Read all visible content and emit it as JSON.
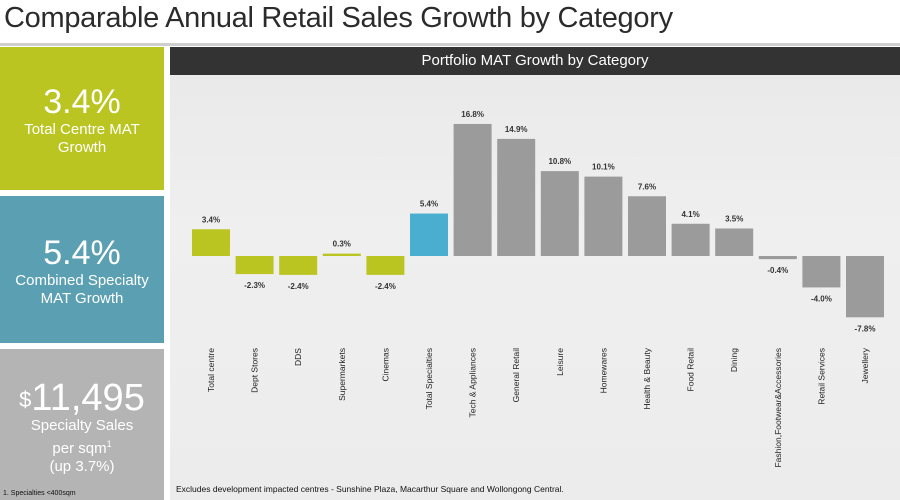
{
  "header": {
    "title": "Comparable Annual Retail Sales Growth by Category"
  },
  "kpis": [
    {
      "value": "3.4%",
      "label_line1": "Total Centre MAT",
      "label_line2": "Growth",
      "color": "#bac521"
    },
    {
      "value": "5.4%",
      "label_line1": "Combined Specialty",
      "label_line2": "MAT Growth",
      "color": "#5ba0b2"
    },
    {
      "currency": "$",
      "value": "11,495",
      "label_line1": "Specialty Sales",
      "label_line2": "per sqm",
      "footnote_ref": "1",
      "label_line3": "(up 3.7%)",
      "color": "#b4b4b4"
    }
  ],
  "footnote": "1. Specialties <400sqm",
  "note": "Excludes development impacted centres - Sunshine Plaza, Macarthur Square and Wollongong Central.",
  "chart_data": {
    "type": "bar",
    "title": "Portfolio MAT Growth by Category",
    "xlabel": "",
    "ylabel": "",
    "unit": "%",
    "ylim": [
      -9,
      18
    ],
    "grid": false,
    "categories": [
      "Total centre",
      "Dept Stores",
      "DDS",
      "Supermarkets",
      "Cinemas",
      "Total Specialties",
      "Tech & Appliances",
      "General Retail",
      "Leisure",
      "Homewares",
      "Health & Beauty",
      "Food Retail",
      "Dining",
      "Fashion,Footwear&Accessories",
      "Retail Services",
      "Jewellery"
    ],
    "values": [
      3.4,
      -2.3,
      -2.4,
      0.3,
      -2.4,
      5.4,
      16.8,
      14.9,
      10.8,
      10.1,
      7.6,
      4.1,
      3.5,
      -0.4,
      -4.0,
      -7.8
    ],
    "labels": [
      "3.4%",
      "-2.3%",
      "-2.4%",
      "0.3%",
      "-2.4%",
      "5.4%",
      "16.8%",
      "14.9%",
      "10.8%",
      "10.1%",
      "7.6%",
      "4.1%",
      "3.5%",
      "-0.4%",
      "-4.0%",
      "-7.8%"
    ],
    "bar_colors": [
      "#bac521",
      "#bac521",
      "#bac521",
      "#bac521",
      "#bac521",
      "#4aaed0",
      "#9b9b9b",
      "#9b9b9b",
      "#9b9b9b",
      "#9b9b9b",
      "#9b9b9b",
      "#9b9b9b",
      "#9b9b9b",
      "#9b9b9b",
      "#9b9b9b",
      "#9b9b9b"
    ]
  }
}
